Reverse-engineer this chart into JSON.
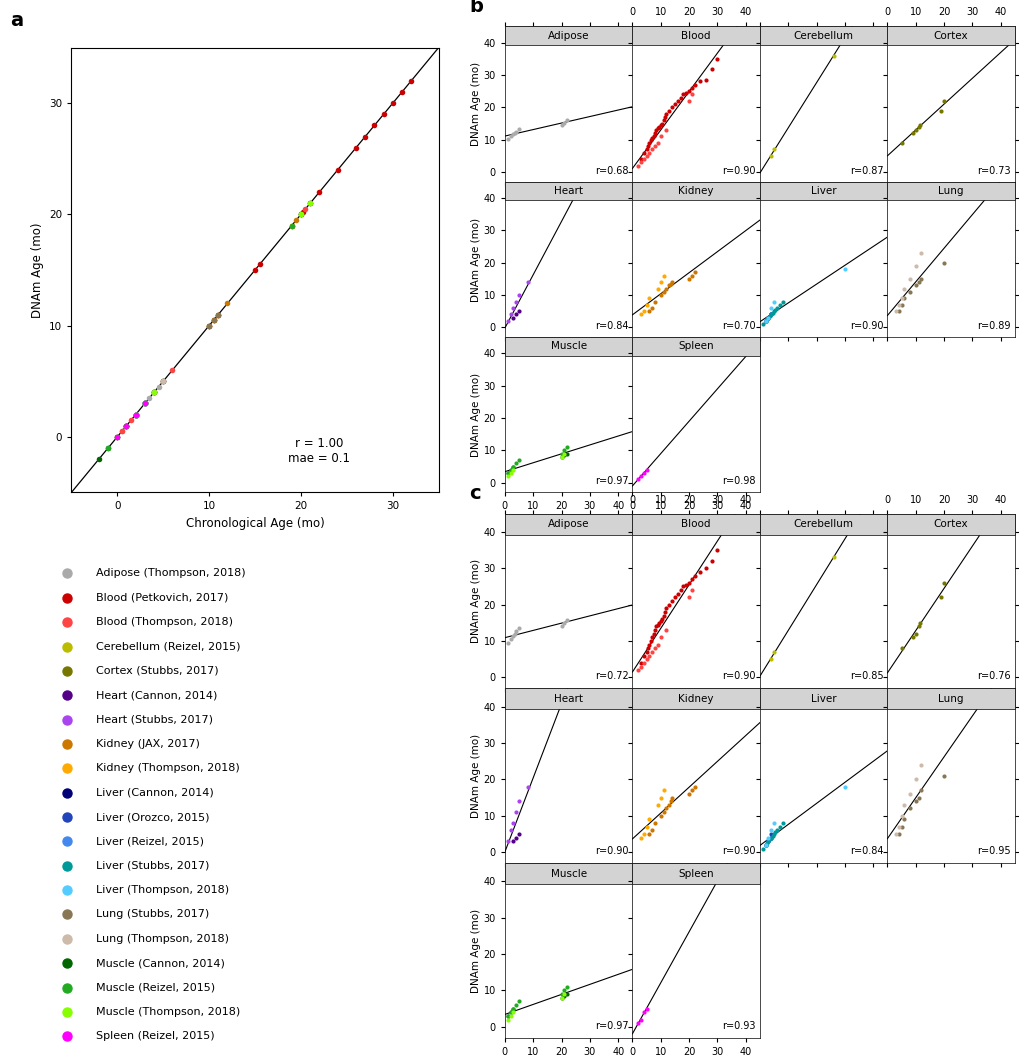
{
  "colors": {
    "Adipose_Thompson": "#aaaaaa",
    "Blood_Petkovich": "#cc0000",
    "Blood_Thompson": "#ff4444",
    "Cerebellum_Reizel": "#bbbb00",
    "Cortex_Stubbs": "#777700",
    "Heart_Cannon": "#550088",
    "Heart_Stubbs": "#aa44ee",
    "Kidney_JAX": "#cc7700",
    "Kidney_Thompson": "#ffaa00",
    "Liver_Cannon": "#000077",
    "Liver_Orozco": "#2244bb",
    "Liver_Reizel": "#4488ee",
    "Liver_Stubbs": "#009999",
    "Liver_Thompson": "#55ccff",
    "Lung_Stubbs": "#887755",
    "Lung_Thompson": "#ccbbaa",
    "Muscle_Cannon": "#006600",
    "Muscle_Reizel": "#22aa22",
    "Muscle_Thompson": "#88ff00",
    "Spleen_Reizel": "#ff00ff"
  },
  "legend_entries": [
    [
      "Adipose (Thompson, 2018)",
      "#aaaaaa"
    ],
    [
      "Blood (Petkovich, 2017)",
      "#cc0000"
    ],
    [
      "Blood (Thompson, 2018)",
      "#ff4444"
    ],
    [
      "Cerebellum (Reizel, 2015)",
      "#bbbb00"
    ],
    [
      "Cortex (Stubbs, 2017)",
      "#777700"
    ],
    [
      "Heart (Cannon, 2014)",
      "#550088"
    ],
    [
      "Heart (Stubbs, 2017)",
      "#aa44ee"
    ],
    [
      "Kidney (JAX, 2017)",
      "#cc7700"
    ],
    [
      "Kidney (Thompson, 2018)",
      "#ffaa00"
    ],
    [
      "Liver (Cannon, 2014)",
      "#000077"
    ],
    [
      "Liver (Orozco, 2015)",
      "#2244bb"
    ],
    [
      "Liver (Reizel, 2015)",
      "#4488ee"
    ],
    [
      "Liver (Stubbs, 2017)",
      "#009999"
    ],
    [
      "Liver (Thompson, 2018)",
      "#55ccff"
    ],
    [
      "Lung (Stubbs, 2017)",
      "#887755"
    ],
    [
      "Lung (Thompson, 2018)",
      "#ccbbaa"
    ],
    [
      "Muscle (Cannon, 2014)",
      "#006600"
    ],
    [
      "Muscle (Reizel, 2015)",
      "#22aa22"
    ],
    [
      "Muscle (Thompson, 2018)",
      "#88ff00"
    ],
    [
      "Spleen (Reizel, 2015)",
      "#ff00ff"
    ]
  ],
  "panel_b_r": {
    "Adipose": "0.68",
    "Blood": "0.90",
    "Cerebellum": "0.87",
    "Cortex": "0.73",
    "Heart": "0.84",
    "Kidney": "0.70",
    "Liver": "0.90",
    "Lung": "0.89",
    "Muscle": "0.97",
    "Spleen": "0.98"
  },
  "panel_c_r": {
    "Adipose": "0.72",
    "Blood": "0.90",
    "Cerebellum": "0.85",
    "Cortex": "0.76",
    "Heart": "0.90",
    "Kidney": "0.90",
    "Liver": "0.84",
    "Lung": "0.95",
    "Muscle": "0.97",
    "Spleen": "0.93"
  },
  "tissues_order": [
    "Adipose",
    "Blood",
    "Cerebellum",
    "Cortex",
    "Heart",
    "Kidney",
    "Liver",
    "Lung",
    "Muscle",
    "Spleen"
  ]
}
